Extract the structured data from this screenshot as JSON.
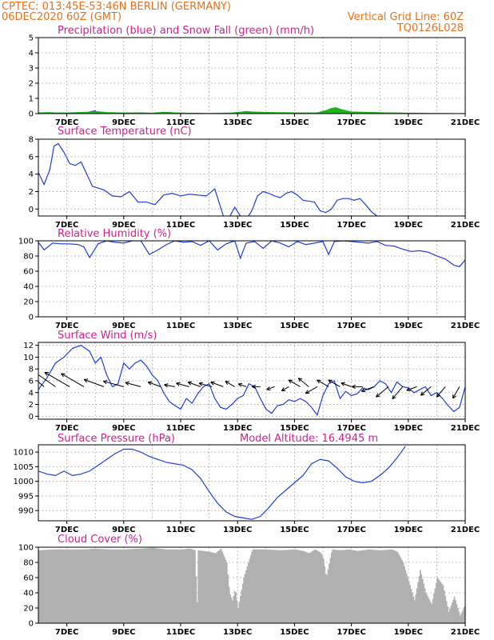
{
  "header": {
    "left_line1": "CPTEC:   013:45E-53:46N   BERLIN (GERMANY)",
    "left_line2": "06DEC2020 60Z (GMT)",
    "right_line1": "Vertical Grid Line: 60Z",
    "right_line2": "TQ0126L028"
  },
  "colors": {
    "header": "#e8701a",
    "title": "#d0208f",
    "line": "#1f3fd8",
    "snow": "#1db31d",
    "cloud": "#b0b0b0"
  },
  "chart_data": [
    {
      "type": "area",
      "title": "Precipitation (blue) and Snow Fall (green) (mm/h)",
      "x_ticks": [
        "7DEC",
        "9DEC",
        "11DEC",
        "13DEC",
        "15DEC",
        "17DEC",
        "19DEC",
        "21DEC"
      ],
      "ylim": [
        0,
        5
      ],
      "y_ticks": [
        0,
        1,
        2,
        3,
        4,
        5
      ],
      "series": [
        {
          "name": "Precipitation",
          "color": "#1f3fd8",
          "x": [
            6.0,
            7.6,
            7.8,
            8.0,
            8.1,
            12.8,
            13.2,
            13.4,
            13.6,
            16.3,
            16.45,
            16.6
          ],
          "values": [
            0,
            0,
            0.12,
            0.2,
            0,
            0,
            0.05,
            0.08,
            0,
            0,
            0.1,
            0
          ]
        },
        {
          "name": "Snow Fall",
          "color": "#1db31d",
          "x": [
            6.0,
            6.3,
            6.6,
            7.0,
            7.4,
            7.7,
            8.0,
            8.4,
            8.8,
            9.2,
            9.6,
            10.0,
            10.4,
            10.8,
            11.2,
            11.6,
            12.0,
            12.4,
            12.8,
            13.1,
            13.3,
            13.5,
            13.8,
            14.2,
            14.6,
            15.0,
            15.4,
            15.8,
            16.1,
            16.3,
            16.45,
            16.6,
            16.8,
            17.0,
            17.4,
            17.8,
            18.2,
            18.6,
            19.0,
            19.4,
            19.8,
            20.2,
            20.6,
            21.0
          ],
          "values": [
            0.05,
            0.08,
            0.06,
            0.05,
            0.08,
            0.1,
            0.15,
            0.08,
            0.06,
            0.05,
            0.06,
            0.04,
            0.1,
            0.06,
            0.04,
            0.03,
            0.02,
            0.03,
            0.05,
            0.1,
            0.15,
            0.12,
            0.1,
            0.08,
            0.07,
            0.06,
            0.05,
            0.06,
            0.2,
            0.35,
            0.4,
            0.3,
            0.2,
            0.12,
            0.1,
            0.08,
            0.06,
            0.05,
            0.04,
            0.03,
            0.02,
            0.02,
            0.01,
            0.01
          ]
        }
      ]
    },
    {
      "type": "line",
      "title": "Surface Temperature (nC)",
      "x_ticks": [
        "7DEC",
        "9DEC",
        "11DEC",
        "13DEC",
        "15DEC",
        "17DEC",
        "19DEC",
        "21DEC"
      ],
      "ylim": [
        -0.8,
        8
      ],
      "y_ticks": [
        0,
        2,
        4,
        6,
        8
      ],
      "x": [
        6.0,
        6.2,
        6.4,
        6.55,
        6.7,
        6.9,
        7.1,
        7.3,
        7.5,
        7.7,
        7.9,
        8.1,
        8.3,
        8.6,
        8.9,
        9.2,
        9.5,
        9.8,
        10.1,
        10.4,
        10.7,
        11.0,
        11.3,
        11.6,
        11.9,
        12.2,
        12.5,
        12.7,
        12.9,
        13.1,
        13.3,
        13.5,
        13.7,
        13.9,
        14.1,
        14.3,
        14.5,
        14.7,
        14.9,
        15.1,
        15.3,
        15.5,
        15.7,
        15.9,
        16.1,
        16.3,
        16.5,
        16.7,
        16.9,
        17.1,
        17.3,
        17.5,
        17.7,
        17.9
      ],
      "values": [
        4.2,
        2.8,
        4.5,
        7.2,
        7.5,
        6.5,
        5.2,
        5.0,
        5.4,
        4.0,
        2.6,
        2.4,
        2.2,
        1.5,
        1.4,
        2.0,
        0.8,
        0.8,
        0.5,
        1.6,
        1.8,
        1.5,
        1.7,
        1.6,
        1.5,
        2.3,
        -0.8,
        -1.0,
        0.2,
        -0.8,
        -1.2,
        -0.2,
        1.5,
        2.0,
        1.8,
        1.5,
        1.3,
        1.8,
        2.0,
        1.6,
        1.0,
        0.9,
        0.8,
        -0.2,
        -0.4,
        0.0,
        1.0,
        1.2,
        1.2,
        1.0,
        1.2,
        0.5,
        -0.3,
        -0.8
      ]
    },
    {
      "type": "line",
      "title": "Relative Humidity (%)",
      "x_ticks": [
        "7DEC",
        "9DEC",
        "11DEC",
        "13DEC",
        "15DEC",
        "17DEC",
        "19DEC",
        "21DEC"
      ],
      "ylim": [
        0,
        100
      ],
      "y_ticks": [
        0,
        20,
        40,
        60,
        80,
        100
      ],
      "x": [
        6.0,
        6.2,
        6.5,
        6.8,
        7.1,
        7.4,
        7.6,
        7.8,
        8.1,
        8.4,
        8.7,
        9.0,
        9.3,
        9.6,
        9.9,
        10.2,
        10.5,
        10.8,
        11.1,
        11.4,
        11.7,
        12.0,
        12.3,
        12.6,
        12.9,
        13.1,
        13.3,
        13.6,
        13.9,
        14.2,
        14.5,
        14.8,
        15.1,
        15.4,
        15.7,
        16.0,
        16.2,
        16.4,
        16.7,
        17.0,
        17.3,
        17.6,
        17.9,
        18.2,
        18.5,
        18.8,
        19.1,
        19.4,
        19.7,
        20.0,
        20.3,
        20.6,
        20.8,
        21.0
      ],
      "values": [
        98,
        88,
        97,
        96,
        96,
        95,
        92,
        78,
        96,
        100,
        98,
        97,
        100,
        100,
        82,
        88,
        95,
        100,
        98,
        99,
        94,
        100,
        88,
        96,
        100,
        77,
        97,
        99,
        90,
        100,
        97,
        92,
        99,
        95,
        97,
        99,
        82,
        99,
        100,
        99,
        98,
        97,
        99,
        94,
        93,
        89,
        86,
        87,
        85,
        80,
        76,
        68,
        66,
        75
      ]
    },
    {
      "type": "line",
      "title": "Surface Wind (m/s)",
      "x_ticks": [
        "7DEC",
        "9DEC",
        "11DEC",
        "13DEC",
        "15DEC",
        "17DEC",
        "19DEC",
        "21DEC"
      ],
      "ylim": [
        -0.5,
        12.5
      ],
      "y_ticks": [
        0,
        2,
        4,
        6,
        8,
        10,
        12
      ],
      "x": [
        6.0,
        6.3,
        6.6,
        6.9,
        7.2,
        7.5,
        7.8,
        8.0,
        8.2,
        8.4,
        8.6,
        8.8,
        9.0,
        9.2,
        9.4,
        9.6,
        9.8,
        10.0,
        10.2,
        10.4,
        10.6,
        10.8,
        11.0,
        11.2,
        11.4,
        11.6,
        11.8,
        12.0,
        12.2,
        12.4,
        12.6,
        12.8,
        13.0,
        13.2,
        13.4,
        13.6,
        13.8,
        14.0,
        14.2,
        14.4,
        14.6,
        14.8,
        15.0,
        15.2,
        15.4,
        15.6,
        15.8,
        16.0,
        16.2,
        16.4,
        16.6,
        16.8,
        17.0,
        17.2,
        17.4,
        17.6,
        17.8,
        18.0,
        18.2,
        18.4,
        18.6,
        18.8,
        19.0,
        19.2,
        19.4,
        19.6,
        19.8,
        20.0,
        20.2,
        20.4,
        20.6,
        20.8,
        21.0
      ],
      "values": [
        4.5,
        6.5,
        9.0,
        10.0,
        11.5,
        12.0,
        11.0,
        9.0,
        10.0,
        7.0,
        5.0,
        5.5,
        9.0,
        8.0,
        9.0,
        9.5,
        8.5,
        7.0,
        6.0,
        4.0,
        2.5,
        1.8,
        1.2,
        3.0,
        2.2,
        3.8,
        5.0,
        5.5,
        3.0,
        1.5,
        1.2,
        2.0,
        3.0,
        3.5,
        5.5,
        5.0,
        3.0,
        1.2,
        0.5,
        1.8,
        2.0,
        2.8,
        2.5,
        3.0,
        2.5,
        1.5,
        0.2,
        3.5,
        5.5,
        6.0,
        3.0,
        4.2,
        3.5,
        3.8,
        4.8,
        4.5,
        5.0,
        6.0,
        5.5,
        4.0,
        5.8,
        5.0,
        4.8,
        4.0,
        4.5,
        5.0,
        3.5,
        4.0,
        3.0,
        1.8,
        0.8,
        1.5,
        5.0
      ],
      "arrows_x": [
        6.2,
        6.6,
        7.1,
        7.6,
        8.3,
        9.0,
        9.6,
        10.3,
        10.8,
        11.3,
        11.7,
        12.1,
        12.5,
        12.9,
        13.3,
        13.8,
        14.3,
        14.8,
        15.2,
        15.5,
        15.8,
        16.2,
        16.6,
        17.0,
        17.4,
        17.8,
        18.3,
        18.8,
        19.3,
        19.8,
        20.3,
        20.8
      ],
      "arrows_dir_deg": [
        310,
        305,
        300,
        300,
        290,
        285,
        285,
        290,
        280,
        285,
        290,
        285,
        290,
        300,
        290,
        270,
        250,
        240,
        300,
        310,
        240,
        300,
        300,
        290,
        270,
        250,
        230,
        220,
        250,
        230,
        220,
        210
      ],
      "arrows_speed": [
        10,
        10,
        10,
        9,
        7,
        7,
        5,
        4,
        3,
        4,
        4,
        4,
        4,
        3,
        2,
        2,
        2,
        2,
        4,
        4,
        4,
        4,
        4,
        3,
        3,
        4,
        5,
        5,
        3,
        4,
        4,
        4
      ]
    },
    {
      "type": "line",
      "title": "Surface Pressure (hPa)",
      "subtitle": "Model Altitude: 16.4945 m",
      "x_ticks": [
        "7DEC",
        "9DEC",
        "11DEC",
        "13DEC",
        "15DEC",
        "17DEC",
        "19DEC",
        "21DEC"
      ],
      "ylim": [
        986.5,
        1012.5
      ],
      "y_ticks": [
        990,
        995,
        1000,
        1005,
        1010
      ],
      "x": [
        6.0,
        6.3,
        6.6,
        6.9,
        7.2,
        7.5,
        7.8,
        8.1,
        8.4,
        8.7,
        9.0,
        9.3,
        9.6,
        9.9,
        10.2,
        10.5,
        10.8,
        11.1,
        11.4,
        11.7,
        12.0,
        12.3,
        12.6,
        12.9,
        13.2,
        13.5,
        13.8,
        14.1,
        14.4,
        14.7,
        15.0,
        15.3,
        15.6,
        15.9,
        16.2,
        16.5,
        16.8,
        17.1,
        17.4,
        17.7,
        18.0,
        18.3,
        18.6,
        18.9
      ],
      "values": [
        1003.5,
        1002.5,
        1002.0,
        1003.5,
        1002.0,
        1002.5,
        1003.5,
        1005.5,
        1007.5,
        1009.5,
        1011.0,
        1011.0,
        1010.0,
        1008.5,
        1007.5,
        1006.5,
        1006.0,
        1005.5,
        1004.0,
        1001.0,
        996.5,
        992.5,
        989.5,
        988.0,
        987.5,
        987.0,
        988.0,
        991.0,
        994.5,
        997.0,
        999.5,
        1002.0,
        1006.0,
        1007.5,
        1007.0,
        1004.5,
        1001.5,
        1000.0,
        999.5,
        1000.0,
        1002.0,
        1004.5,
        1008.0,
        1012.0
      ]
    },
    {
      "type": "area",
      "title": "Cloud Cover (%)",
      "x_ticks": [
        "7DEC",
        "9DEC",
        "11DEC",
        "13DEC",
        "15DEC",
        "17DEC",
        "19DEC",
        "21DEC"
      ],
      "ylim": [
        0,
        100
      ],
      "y_ticks": [
        0,
        20,
        40,
        60,
        80,
        100
      ],
      "x": [
        6.0,
        6.5,
        7.0,
        7.5,
        8.0,
        8.5,
        9.0,
        9.5,
        10.0,
        10.5,
        11.0,
        11.3,
        11.5,
        11.55,
        11.6,
        11.8,
        12.0,
        12.2,
        12.4,
        12.6,
        12.7,
        12.8,
        12.9,
        13.0,
        13.2,
        13.5,
        14.0,
        14.5,
        15.0,
        15.3,
        15.5,
        15.7,
        15.9,
        16.0,
        16.1,
        16.3,
        16.6,
        16.9,
        17.2,
        17.6,
        18.0,
        18.4,
        18.6,
        18.8,
        19.0,
        19.2,
        19.4,
        19.6,
        19.8,
        20.0,
        20.2,
        20.4,
        20.6,
        20.8,
        21.0
      ],
      "values": [
        96,
        97,
        97,
        97,
        98,
        97,
        97,
        98,
        99,
        97,
        97,
        98,
        96,
        10,
        96,
        95,
        94,
        92,
        98,
        80,
        40,
        30,
        45,
        20,
        60,
        97,
        97,
        96,
        97,
        95,
        92,
        97,
        93,
        85,
        60,
        97,
        96,
        97,
        95,
        97,
        96,
        97,
        94,
        80,
        55,
        30,
        70,
        40,
        25,
        60,
        50,
        15,
        35,
        10,
        25
      ]
    }
  ]
}
